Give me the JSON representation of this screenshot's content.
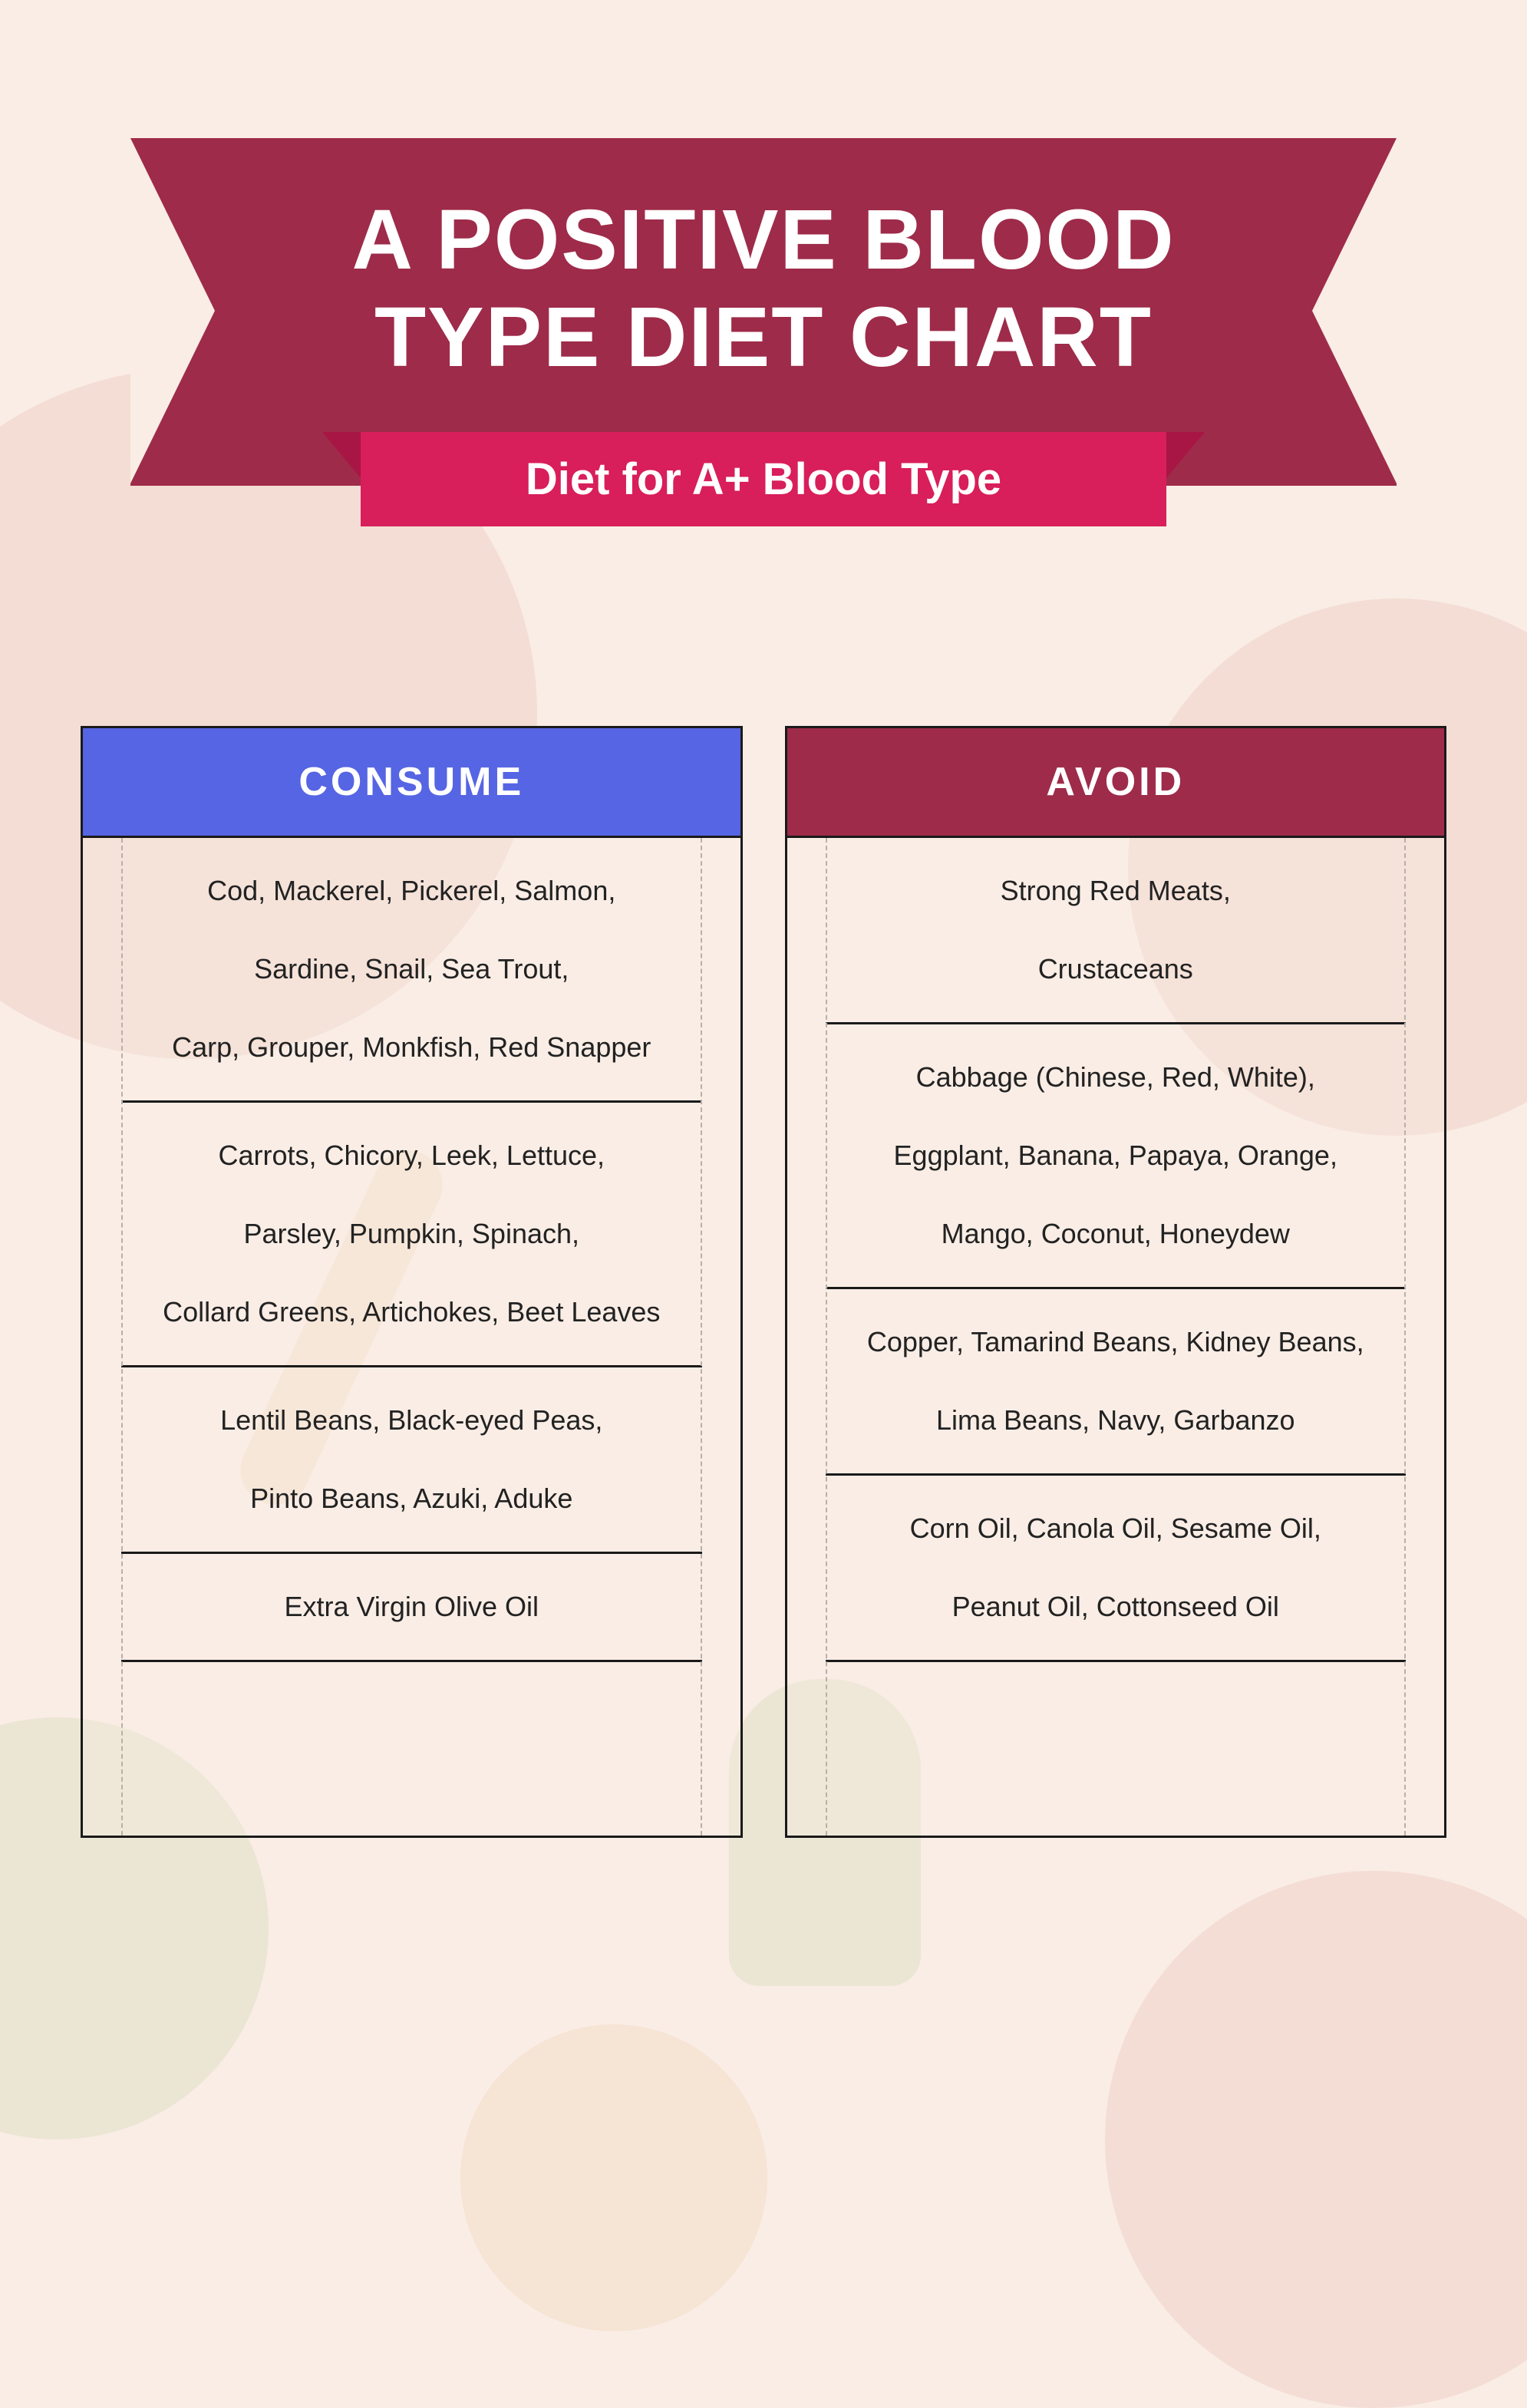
{
  "title_line1": "A POSITIVE BLOOD",
  "title_line2": "TYPE DIET CHART",
  "subtitle": "Diet for A+ Blood Type",
  "colors": {
    "page_bg": "#f9ede5",
    "title_bg": "#9e2b4a",
    "subtitle_bg": "#d81e5b",
    "consume_header_bg": "#5665e3",
    "avoid_header_bg": "#9e2b4a",
    "border": "#1a1a1a",
    "text": "#222222",
    "dashed": "#b9b0a8"
  },
  "consume": {
    "header": "CONSUME",
    "groups": [
      [
        "Cod, Mackerel, Pickerel, Salmon,",
        "Sardine, Snail, Sea Trout,",
        "Carp, Grouper, Monkfish, Red Snapper"
      ],
      [
        "Carrots, Chicory, Leek, Lettuce,",
        "Parsley, Pumpkin, Spinach,",
        "Collard Greens, Artichokes, Beet Leaves"
      ],
      [
        "Lentil Beans, Black-eyed Peas,",
        "Pinto Beans, Azuki, Aduke"
      ],
      [
        "Extra Virgin Olive Oil"
      ]
    ]
  },
  "avoid": {
    "header": "AVOID",
    "groups": [
      [
        "Strong Red Meats,",
        "Crustaceans"
      ],
      [
        "Cabbage (Chinese, Red, White),",
        "Eggplant, Banana, Papaya, Orange,",
        "Mango, Coconut, Honeydew"
      ],
      [
        "Copper, Tamarind Beans, Kidney Beans,",
        "Lima Beans, Navy, Garbanzo"
      ],
      [
        "Corn Oil, Canola Oil, Sesame Oil,",
        "Peanut Oil, Cottonseed Oil"
      ]
    ]
  }
}
